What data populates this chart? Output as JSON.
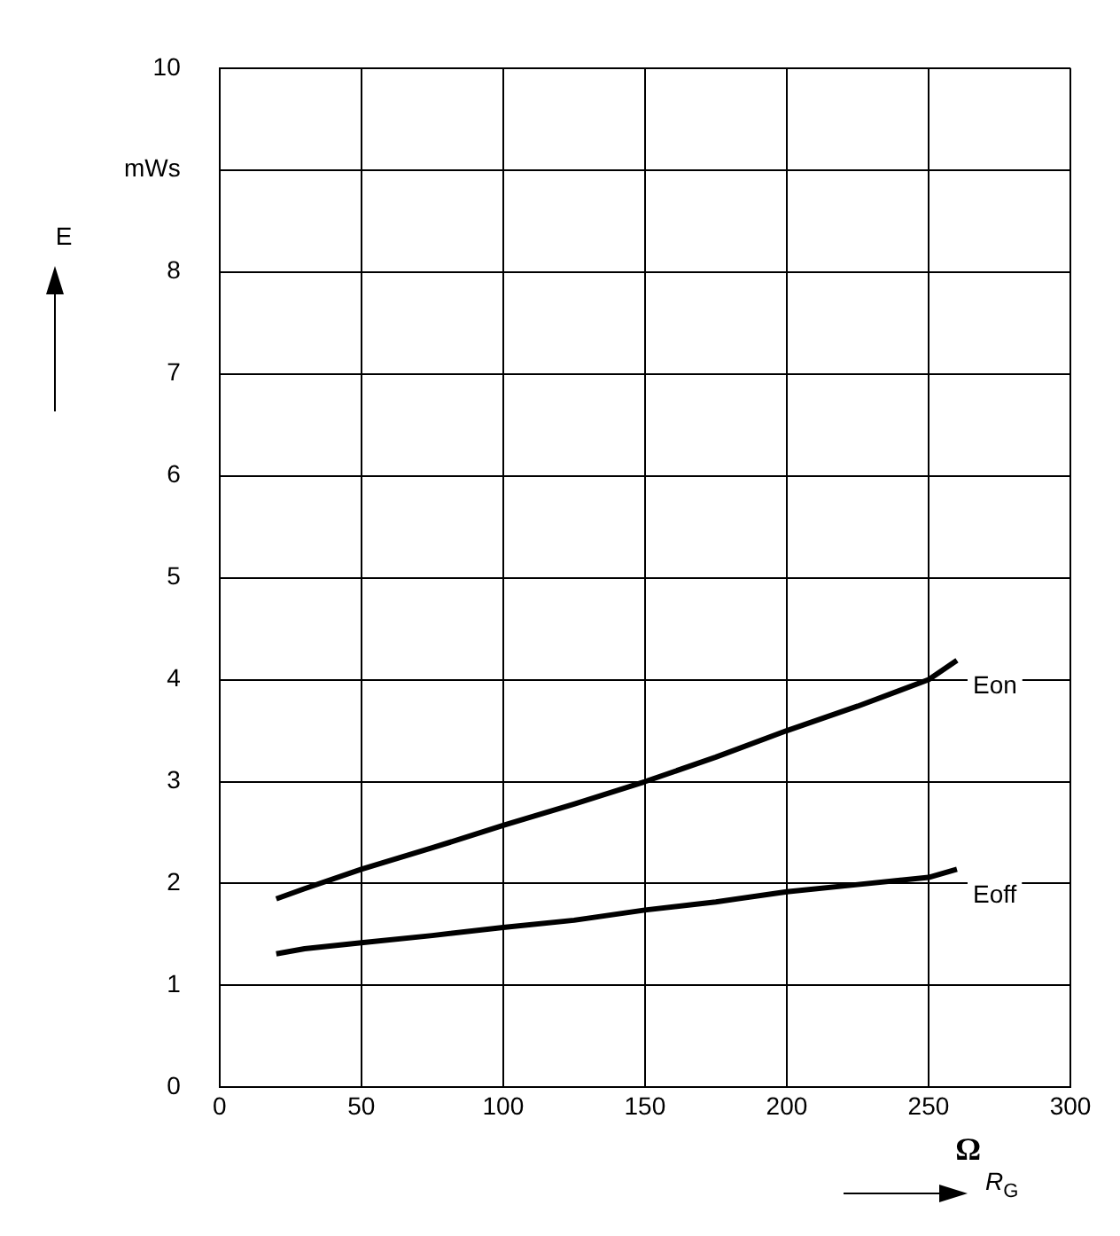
{
  "chart_data": {
    "type": "line",
    "xlabel": "R$_{G}$",
    "ylabel": "E",
    "annotations": [
      "Ω"
    ],
    "xlim": [
      0,
      300
    ],
    "xticks": [
      0,
      50,
      100,
      150,
      200,
      250,
      300
    ],
    "ylim": [
      0,
      10
    ],
    "yticks": [
      0,
      1,
      2,
      3,
      4,
      5,
      6,
      7,
      8,
      {
        "value": 9,
        "label": "mWs"
      },
      10
    ],
    "grid": true,
    "legend": false,
    "marker": "none",
    "line_style": "solid",
    "series": [
      {
        "name": "Eon",
        "color": "#000000",
        "x": [
          20,
          30,
          50,
          75,
          100,
          125,
          150,
          175,
          200,
          225,
          250,
          260
        ],
        "values": [
          1.85,
          1.95,
          2.14,
          2.35,
          2.57,
          2.78,
          3.0,
          3.24,
          3.5,
          3.74,
          4.0,
          4.19
        ]
      },
      {
        "name": "Eoff",
        "color": "#000000",
        "x": [
          20,
          30,
          50,
          75,
          100,
          125,
          150,
          175,
          200,
          225,
          250,
          260
        ],
        "values": [
          1.31,
          1.36,
          1.42,
          1.49,
          1.57,
          1.64,
          1.74,
          1.82,
          1.92,
          1.99,
          2.06,
          2.14
        ]
      }
    ]
  }
}
